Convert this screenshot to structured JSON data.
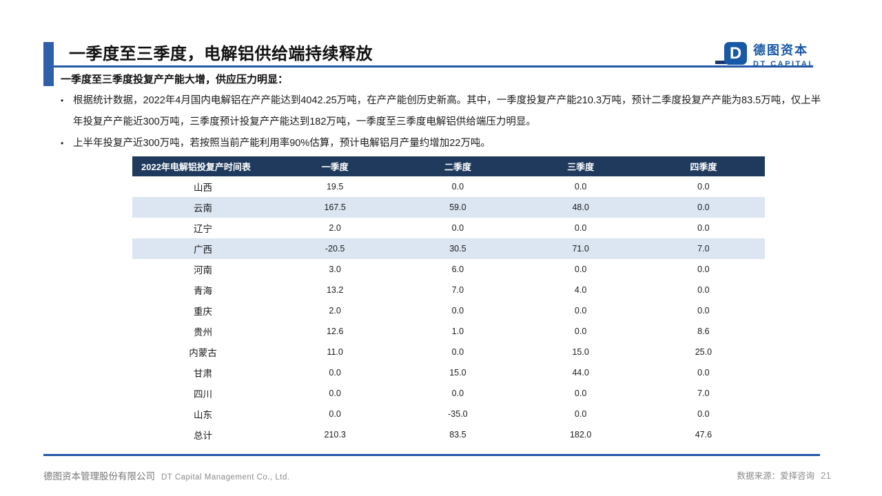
{
  "colors": {
    "accent_blue": "#2157A5",
    "bar_blue": "#2E5FA8",
    "table_header_navy": "#1F3A5C",
    "table_stripe": "#DCE6F2",
    "logo_blue": "#1859A6",
    "footer_gray": "#7F7F7F"
  },
  "logo": {
    "mark": "D",
    "name_cn": "德图资本",
    "name_en": "DT CAPITAL"
  },
  "header": {
    "title": "一季度至三季度，电解铝供给端持续释放"
  },
  "content": {
    "subtitle": "一季度至三季度投复产产能大增，供应压力明显：",
    "bullets": [
      "根据统计数据，2022年4月国内电解铝在产产能达到4042.25万吨，在产产能创历史新高。其中，一季度投复产产能210.3万吨，预计二季度投复产产能为83.5万吨，仅上半年投复产产能近300万吨，三季度预计投复产产能达到182万吨，一季度至三季度电解铝供给端压力明显。",
      "上半年投复产近300万吨，若按照当前产能利用率90%估算，预计电解铝月产量约增加22万吨。"
    ]
  },
  "chart_data": {
    "type": "table",
    "title": "2022年电解铝投复产时间表",
    "columns": [
      "2022年电解铝投复产时间表",
      "一季度",
      "二季度",
      "三季度",
      "四季度"
    ],
    "rows": [
      [
        "山西",
        "19.5",
        "0.0",
        "0.0",
        "0.0"
      ],
      [
        "云南",
        "167.5",
        "59.0",
        "48.0",
        "0.0"
      ],
      [
        "辽宁",
        "2.0",
        "0.0",
        "0.0",
        "0.0"
      ],
      [
        "广西",
        "-20.5",
        "30.5",
        "71.0",
        "7.0"
      ],
      [
        "河南",
        "3.0",
        "6.0",
        "0.0",
        "0.0"
      ],
      [
        "青海",
        "13.2",
        "7.0",
        "4.0",
        "0.0"
      ],
      [
        "重庆",
        "2.0",
        "0.0",
        "0.0",
        "0.0"
      ],
      [
        "贵州",
        "12.6",
        "1.0",
        "0.0",
        "8.6"
      ],
      [
        "内蒙古",
        "11.0",
        "0.0",
        "15.0",
        "25.0"
      ],
      [
        "甘肃",
        "0.0",
        "15.0",
        "44.0",
        "0.0"
      ],
      [
        "四川",
        "0.0",
        "0.0",
        "0.0",
        "7.0"
      ],
      [
        "山东",
        "0.0",
        "-35.0",
        "0.0",
        "0.0"
      ],
      [
        "总计",
        "210.3",
        "83.5",
        "182.0",
        "47.6"
      ]
    ],
    "striped_row_indices": [
      1,
      3
    ]
  },
  "footer": {
    "company_cn": "德图资本管理股份有限公司",
    "company_en": "DT Capital Management Co., Ltd.",
    "source": "数据来源：爱择咨询",
    "page": "21"
  }
}
